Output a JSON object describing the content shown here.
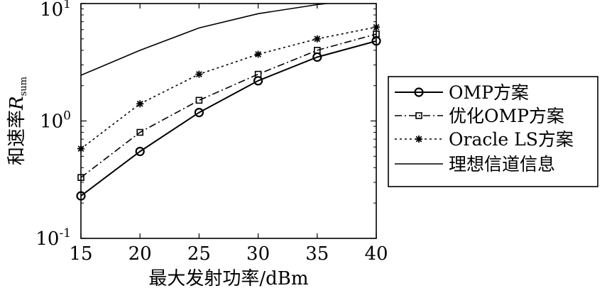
{
  "chart_data": {
    "type": "line",
    "xlabel": "最大发射功率/dBm",
    "ylabel_main": "和速率",
    "ylabel_var": "R",
    "ylabel_sub": "sum",
    "xlim": [
      15,
      40
    ],
    "ylim": [
      0.1,
      10
    ],
    "yscale": "log",
    "x_ticks": [
      15,
      20,
      25,
      30,
      35,
      40
    ],
    "y_ticks": [
      {
        "value": 10,
        "base": "10",
        "exp": "1"
      },
      {
        "value": 1,
        "base": "10",
        "exp": "0"
      },
      {
        "value": 0.1,
        "base": "10",
        "exp": "-1"
      }
    ],
    "grid": false,
    "legend_position": "right",
    "x": [
      15,
      20,
      25,
      30,
      35,
      40
    ],
    "series": [
      {
        "name": "OMP方案",
        "marker": "circle",
        "style": "solid",
        "values": [
          0.23,
          0.55,
          1.18,
          2.2,
          3.5,
          4.8
        ]
      },
      {
        "name": "优化OMP方案",
        "marker": "square",
        "style": "dashdot",
        "values": [
          0.33,
          0.8,
          1.5,
          2.5,
          4.0,
          5.5
        ]
      },
      {
        "name": "Oracle LS方案",
        "marker": "star",
        "style": "dotted",
        "values": [
          0.58,
          1.4,
          2.5,
          3.7,
          5.0,
          6.3
        ]
      },
      {
        "name": "理想信道信息",
        "marker": "none",
        "style": "solid",
        "values": [
          2.45,
          4.0,
          6.2,
          8.2,
          9.8,
          11.2
        ]
      }
    ]
  }
}
